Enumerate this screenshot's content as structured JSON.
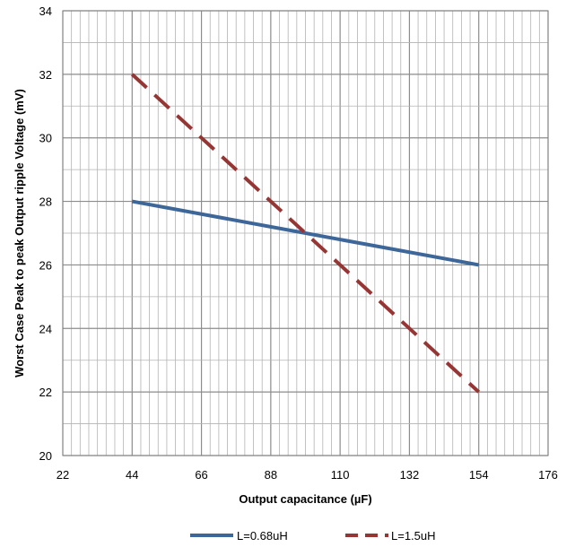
{
  "chart_data": {
    "type": "line",
    "title": "",
    "xlabel": "Output capacitance (µF)",
    "ylabel": "Worst Case Peak to peak Output ripple Voltage (mV)",
    "xlim": [
      22,
      176
    ],
    "ylim": [
      20,
      34
    ],
    "x_ticks": [
      "22",
      "44",
      "66",
      "88",
      "110",
      "132",
      "154",
      "176"
    ],
    "y_ticks": [
      "20",
      "22",
      "24",
      "26",
      "28",
      "30",
      "32",
      "34"
    ],
    "grid": true,
    "legend": "bottom",
    "series": [
      {
        "name": "L=0.68uH",
        "color": "#3D6699",
        "style": "solid",
        "x": [
          44,
          154
        ],
        "y": [
          28,
          26
        ]
      },
      {
        "name": "L=1.5uH",
        "color": "#963634",
        "style": "dashed",
        "x": [
          44,
          154
        ],
        "y": [
          32,
          22
        ]
      }
    ]
  }
}
